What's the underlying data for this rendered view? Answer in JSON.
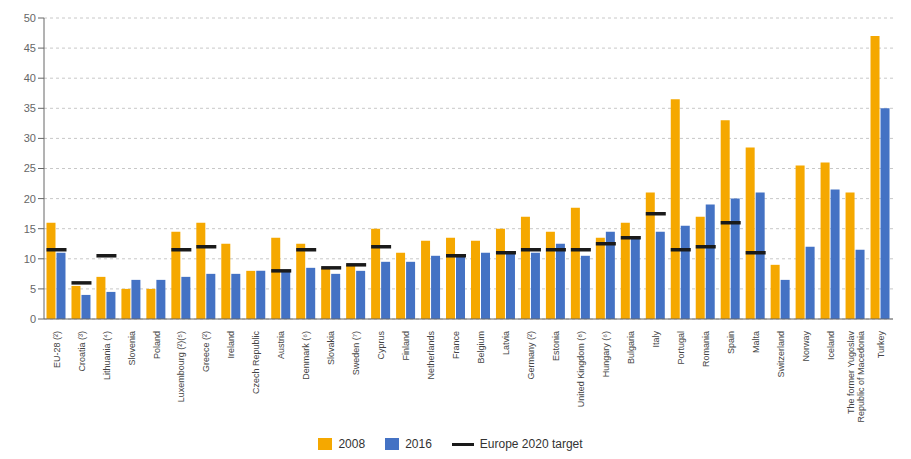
{
  "chart_data": {
    "type": "bar",
    "categories": [
      "EU-28 (²)",
      "Croatia (³)",
      "Lithuania (⁴)",
      "Slovenia",
      "Poland",
      "Luxembourg (²)(⁵)",
      "Greece (²)",
      "Ireland",
      "Czech Republic",
      "Austria",
      "Denmark (⁶)",
      "Slovakia",
      "Sweden (⁷)",
      "Cyprus",
      "Finland",
      "Netherlands",
      "France",
      "Belgium",
      "Latvia",
      "Germany (²)",
      "Estonia",
      "United Kingdom (⁸)",
      "Hungary (⁶)",
      "Bulgaria",
      "Italy",
      "Portugal",
      "Romania",
      "Spain",
      "Malta",
      "Switzerland",
      "Norway",
      "Iceland",
      "The former Yugoslav\nRepublic of Macedonia",
      "Turkey"
    ],
    "series": [
      {
        "name": "2008",
        "color": "#f5a800",
        "values": [
          16.0,
          5.5,
          7.0,
          5.0,
          5.0,
          14.5,
          16.0,
          12.5,
          8.0,
          13.5,
          12.5,
          8.5,
          9.0,
          15.0,
          11.0,
          13.0,
          13.5,
          13.0,
          15.0,
          17.0,
          14.5,
          18.5,
          13.5,
          16.0,
          21.0,
          36.5,
          17.0,
          33.0,
          28.5,
          9.0,
          25.5,
          26.0,
          21.0,
          47.0
        ]
      },
      {
        "name": "2016",
        "color": "#4472c4",
        "values": [
          11.0,
          4.0,
          4.5,
          6.5,
          6.5,
          7.0,
          7.5,
          7.5,
          8.0,
          8.0,
          8.5,
          7.5,
          8.0,
          9.5,
          9.5,
          10.5,
          10.5,
          11.0,
          11.0,
          11.0,
          12.5,
          10.5,
          14.5,
          13.5,
          14.5,
          15.5,
          19.0,
          20.0,
          21.0,
          6.5,
          12.0,
          21.5,
          11.5,
          35.0
        ]
      },
      {
        "name": "Europe 2020 target",
        "color": "#1a1a1a",
        "type": "line",
        "values": [
          11.5,
          6.0,
          10.5,
          null,
          null,
          11.5,
          12.0,
          null,
          null,
          8.0,
          11.5,
          8.5,
          9.0,
          12.0,
          null,
          null,
          10.5,
          null,
          11.0,
          11.5,
          11.5,
          11.5,
          12.5,
          13.5,
          17.5,
          11.5,
          12.0,
          16.0,
          11.0,
          null,
          null,
          null,
          null,
          null
        ]
      }
    ],
    "ylim": [
      0,
      50
    ],
    "yticks": [
      0,
      5,
      10,
      15,
      20,
      25,
      30,
      35,
      40,
      45,
      50
    ],
    "grid": true,
    "legend": "bottom"
  }
}
